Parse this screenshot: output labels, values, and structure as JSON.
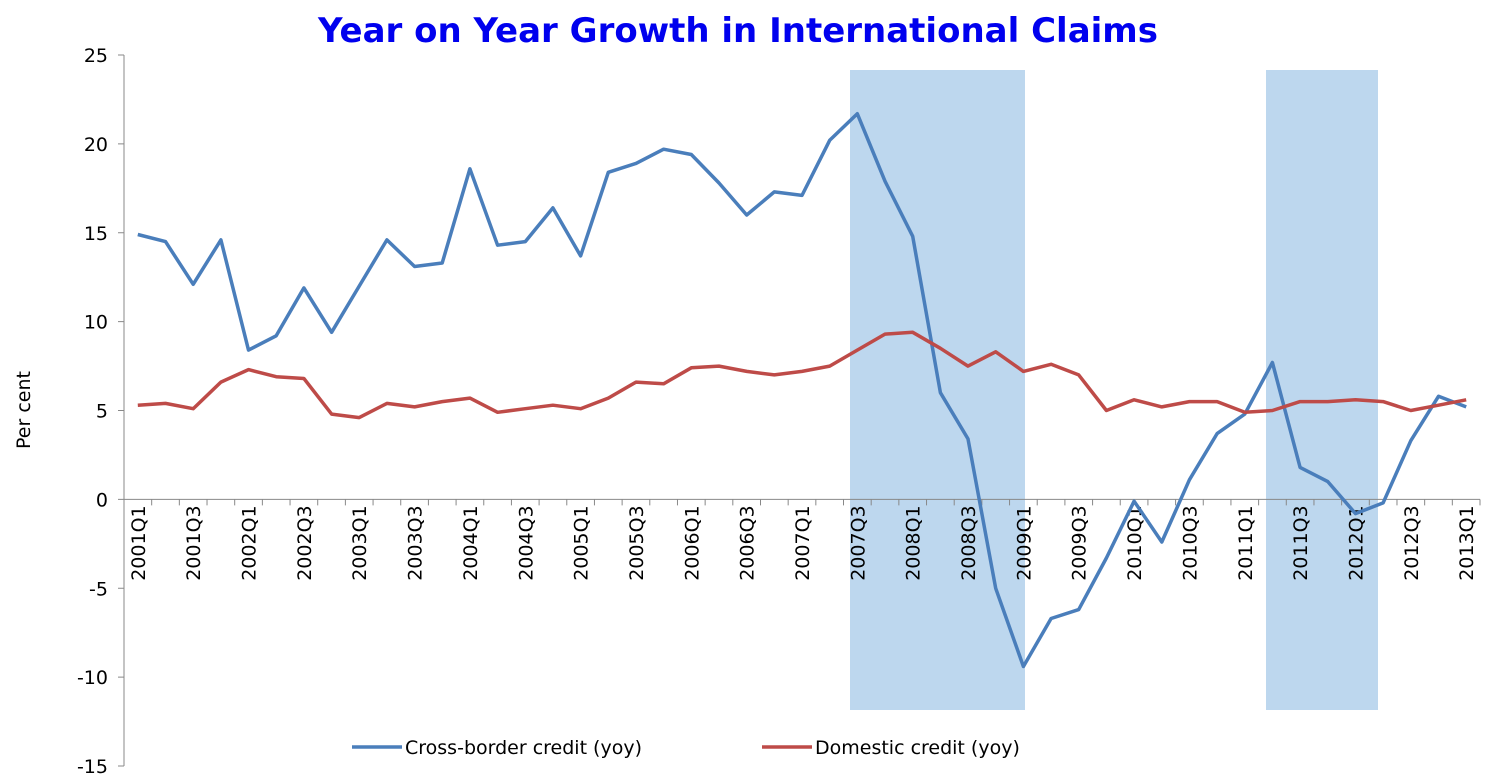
{
  "chart_data": {
    "type": "line",
    "title": "Year on Year Growth in International Claims",
    "y_label": "Per cent",
    "categories": [
      "2001Q1",
      null,
      "2001Q3",
      null,
      "2002Q1",
      null,
      "2002Q3",
      null,
      "2003Q1",
      null,
      "2003Q3",
      null,
      "2004Q1",
      null,
      "2004Q3",
      null,
      "2005Q1",
      null,
      "2005Q3",
      null,
      "2006Q1",
      null,
      "2006Q3",
      null,
      "2007Q1",
      null,
      "2007Q3",
      null,
      "2008Q1",
      null,
      "2008Q3",
      null,
      "2009Q1",
      null,
      "2009Q3",
      null,
      "2010Q1",
      null,
      "2010Q3",
      null,
      "2011Q1",
      null,
      "2011Q3",
      null,
      "2012Q1",
      null,
      "2012Q3",
      null,
      "2013Q1"
    ],
    "series": [
      {
        "name": "Cross-border credit (yoy)",
        "color": "#4a7ebb",
        "values": [
          14.9,
          14.5,
          12.1,
          14.6,
          8.4,
          9.2,
          11.9,
          9.4,
          12.0,
          14.6,
          13.1,
          13.3,
          18.6,
          14.3,
          14.5,
          16.4,
          13.7,
          18.4,
          18.9,
          19.7,
          19.4,
          17.8,
          16.0,
          17.3,
          17.1,
          20.2,
          21.7,
          17.9,
          14.8,
          6.0,
          3.4,
          -5.0,
          -9.4,
          -6.7,
          -6.2,
          -3.3,
          -0.1,
          -2.4,
          1.1,
          3.7,
          4.8,
          7.7,
          1.8,
          1.0,
          -0.8,
          -0.2,
          3.3,
          5.8,
          5.2
        ]
      },
      {
        "name": "Domestic credit (yoy)",
        "color": "#be4b48",
        "values": [
          5.3,
          5.4,
          5.1,
          6.6,
          7.3,
          6.9,
          6.8,
          4.8,
          4.6,
          5.4,
          5.2,
          5.5,
          5.7,
          4.9,
          5.1,
          5.3,
          5.1,
          5.7,
          6.6,
          6.5,
          7.4,
          7.5,
          7.2,
          7.0,
          7.2,
          7.5,
          8.4,
          9.3,
          9.4,
          8.5,
          7.5,
          8.3,
          7.2,
          7.6,
          7.0,
          5.0,
          5.6,
          5.2,
          5.5,
          5.5,
          4.9,
          5.0,
          5.5,
          5.5,
          5.6,
          5.5,
          5.0,
          5.3,
          5.6
        ]
      }
    ],
    "ylim": [
      -15,
      25
    ],
    "yticks": [
      -15,
      -10,
      -5,
      0,
      5,
      10,
      15,
      20,
      25
    ],
    "grid": false,
    "legend": "bottom"
  }
}
